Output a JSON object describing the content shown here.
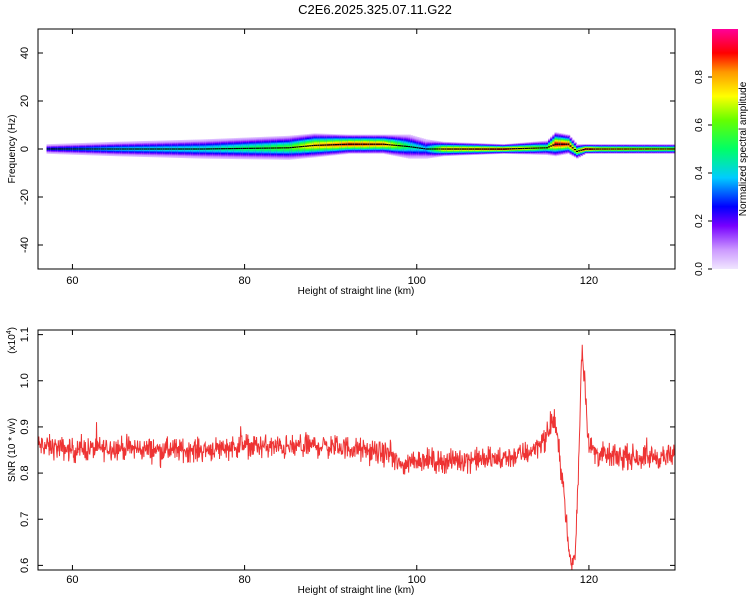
{
  "title": "C2E6.2025.325.07.11.G22",
  "chart_data": [
    {
      "type": "heatmap",
      "xlabel": "Height of straight line (km)",
      "ylabel": "Frequency (Hz)",
      "xlim": [
        56,
        130
      ],
      "ylim": [
        -50,
        50
      ],
      "xticks": [
        60,
        80,
        100,
        120
      ],
      "yticks": [
        -40,
        -20,
        0,
        20,
        40
      ],
      "colorbar": {
        "label": "Normalized spectral amplitude",
        "range": [
          0,
          1
        ],
        "ticks": [
          0.0,
          0.2,
          0.4,
          0.6,
          0.8
        ],
        "tick_labels": [
          "0.0",
          "0.2",
          "0.4",
          "0.6",
          "0.8"
        ]
      },
      "ridge": {
        "x": [
          57,
          65,
          75,
          85,
          88,
          92,
          96,
          99,
          101,
          103,
          110,
          115,
          116,
          117.5,
          118.5,
          119.5,
          121,
          130
        ],
        "y": [
          0,
          0,
          0,
          0.5,
          1.5,
          2,
          2,
          1,
          0,
          0,
          0,
          0.5,
          2,
          2,
          -1,
          0,
          0,
          0
        ],
        "intensity": [
          0.3,
          0.4,
          0.45,
          0.6,
          0.8,
          0.9,
          0.85,
          0.5,
          0.4,
          0.8,
          0.9,
          0.6,
          0.95,
          0.9,
          0.7,
          0.95,
          0.8,
          0.7
        ],
        "halfwidth_hz": [
          2,
          3,
          4,
          5,
          5,
          4,
          4,
          5,
          4,
          3,
          2,
          3,
          5,
          4,
          3,
          2,
          2,
          2
        ]
      }
    },
    {
      "type": "line",
      "xlabel": "Height of straight line (km)",
      "ylabel": "SNR (10 * v/v)",
      "scale_label": "(x10",
      "scale_exp": "4",
      "scale_close": ")",
      "xlim": [
        56,
        130
      ],
      "ylim": [
        0.59,
        1.11
      ],
      "xticks": [
        60,
        80,
        100,
        120
      ],
      "yticks": [
        0.6,
        0.7,
        0.8,
        0.9,
        1.0,
        1.1
      ],
      "ytick_labels": [
        "0.6",
        "0.7",
        "0.8",
        "0.9",
        "1.0",
        "1.1"
      ],
      "series": [
        {
          "color": "#ee3333",
          "x": [
            56,
            60,
            65,
            70,
            75,
            80,
            85,
            88,
            92,
            95,
            97,
            98,
            100,
            103,
            106,
            110,
            113,
            115,
            116,
            117,
            117.6,
            118,
            118.4,
            118.8,
            119.2,
            119.6,
            120,
            121,
            123,
            126,
            130
          ],
          "y": [
            0.86,
            0.85,
            0.855,
            0.85,
            0.85,
            0.86,
            0.855,
            0.86,
            0.855,
            0.845,
            0.84,
            0.815,
            0.83,
            0.825,
            0.83,
            0.83,
            0.845,
            0.875,
            0.92,
            0.78,
            0.64,
            0.6,
            0.62,
            0.82,
            1.08,
            0.97,
            0.86,
            0.84,
            0.835,
            0.835,
            0.835
          ]
        }
      ]
    }
  ]
}
